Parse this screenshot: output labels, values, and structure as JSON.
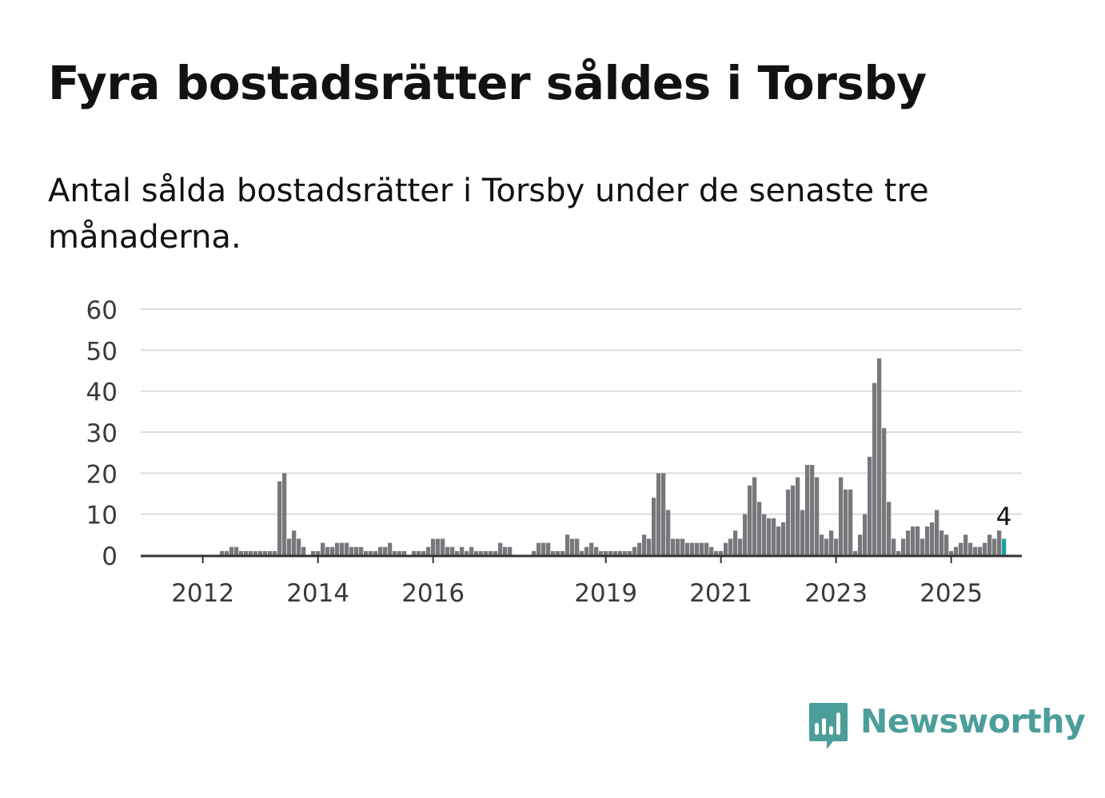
{
  "title": "Fyra bostadsrätter såldes i Torsby",
  "subtitle": "Antal sålda bostadsrätter i Torsby under de senaste tre månaderna.",
  "brand": {
    "name": "Newsworthy",
    "icon": "newsworthy-logo-icon",
    "color": "#4c9e9a"
  },
  "chart_data": {
    "type": "bar",
    "x_unit": "month",
    "start_month": "2011-09",
    "values": [
      0,
      0,
      0,
      0,
      0,
      0,
      0,
      0,
      1,
      1,
      2,
      2,
      1,
      1,
      1,
      1,
      1,
      1,
      1,
      1,
      18,
      20,
      4,
      6,
      4,
      2,
      0,
      1,
      1,
      3,
      2,
      2,
      3,
      3,
      3,
      2,
      2,
      2,
      1,
      1,
      1,
      2,
      2,
      3,
      1,
      1,
      1,
      0,
      1,
      1,
      1,
      2,
      4,
      4,
      4,
      2,
      2,
      1,
      2,
      1,
      2,
      1,
      1,
      1,
      1,
      1,
      3,
      2,
      2,
      0,
      0,
      0,
      0,
      1,
      3,
      3,
      3,
      1,
      1,
      1,
      5,
      4,
      4,
      1,
      2,
      3,
      2,
      1,
      1,
      1,
      1,
      1,
      1,
      1,
      2,
      3,
      5,
      4,
      14,
      20,
      20,
      11,
      4,
      4,
      4,
      3,
      3,
      3,
      3,
      3,
      2,
      1,
      1,
      3,
      4,
      6,
      4,
      10,
      17,
      19,
      13,
      10,
      9,
      9,
      7,
      8,
      16,
      17,
      19,
      11,
      22,
      22,
      19,
      5,
      4,
      6,
      4,
      19,
      16,
      16,
      1,
      5,
      10,
      24,
      42,
      48,
      31,
      13,
      4,
      1,
      4,
      6,
      7,
      7,
      4,
      7,
      8,
      11,
      6,
      5,
      1,
      2,
      3,
      5,
      3,
      2,
      2,
      3,
      5,
      4,
      6,
      4
    ],
    "highlight_last": true,
    "highlight_label": "4",
    "ylim": [
      0,
      60
    ],
    "yticks": [
      0,
      10,
      20,
      30,
      40,
      50,
      60
    ],
    "xticks": [
      "2012",
      "2014",
      "2016",
      "2019",
      "2021",
      "2023",
      "2025"
    ],
    "xlabel": "",
    "ylabel": "",
    "grid": true,
    "colors": {
      "bar": "#78777c",
      "highlight": "#1ba39c",
      "grid": "#dcdcdc",
      "axis": "#333333",
      "tick_text": "#3a3a3a"
    }
  }
}
